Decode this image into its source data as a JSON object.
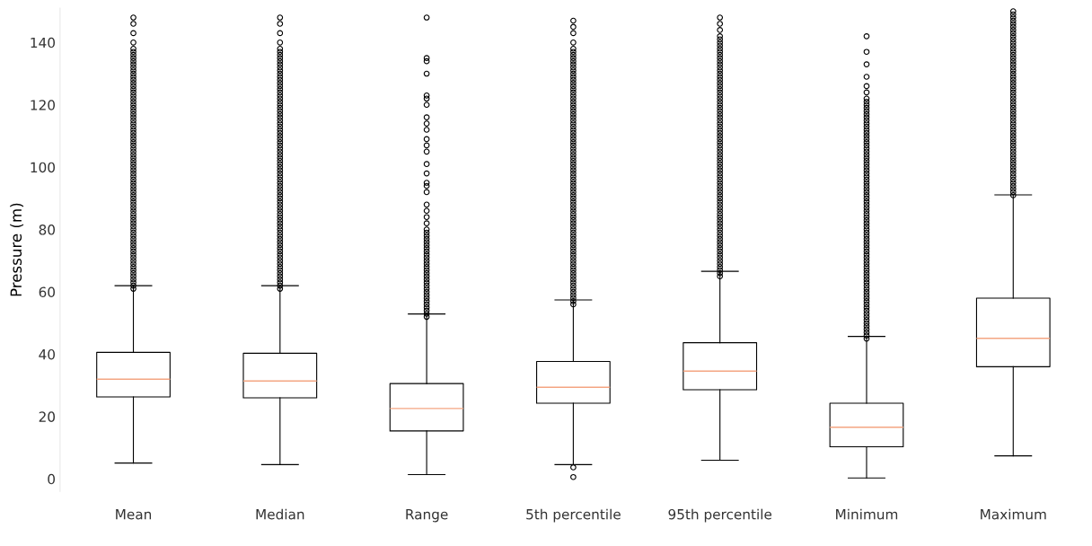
{
  "chart_data": {
    "type": "box",
    "ylabel": "Pressure (m)",
    "categories": [
      "Mean",
      "Median",
      "Range",
      "5th percentile",
      "95th percentile",
      "Minimum",
      "Maximum"
    ],
    "ylim": [
      -4,
      151
    ],
    "yticks": [
      0,
      20,
      40,
      60,
      80,
      100,
      120,
      140
    ],
    "grid": false,
    "color": "#f4a582",
    "series": [
      {
        "color": "#000000",
        "boxes": [
          {
            "low": 5.1,
            "q1": 26.3,
            "median": 32,
            "q3": 40.6,
            "high": 62,
            "outliers": [
              61,
              62,
              63,
              64,
              65,
              66,
              67,
              68,
              69,
              70,
              71,
              72,
              73,
              74,
              75,
              76,
              77,
              78,
              79,
              80,
              81,
              82,
              83,
              84,
              85,
              86,
              87,
              88,
              89,
              90,
              91,
              92,
              93,
              94,
              95,
              96,
              97,
              98,
              99,
              100,
              101,
              102,
              103,
              104,
              105,
              106,
              107,
              108,
              109,
              110,
              111,
              112,
              113,
              114,
              115,
              116,
              117,
              118,
              119,
              120,
              121,
              122,
              123,
              124,
              125,
              126,
              127,
              128,
              129,
              130,
              131,
              132,
              133,
              134,
              135,
              136,
              137,
              138,
              140,
              143,
              146,
              148
            ]
          },
          {
            "low": 4.6,
            "q1": 26,
            "median": 31.4,
            "q3": 40.3,
            "high": 62,
            "outliers": [
              61,
              62,
              63,
              64,
              65,
              66,
              67,
              68,
              69,
              70,
              71,
              72,
              73,
              74,
              75,
              76,
              77,
              78,
              79,
              80,
              81,
              82,
              83,
              84,
              85,
              86,
              87,
              88,
              89,
              90,
              91,
              92,
              93,
              94,
              95,
              96,
              97,
              98,
              99,
              100,
              101,
              102,
              103,
              104,
              105,
              106,
              107,
              108,
              109,
              110,
              111,
              112,
              113,
              114,
              115,
              116,
              117,
              118,
              119,
              120,
              121,
              122,
              123,
              124,
              125,
              126,
              127,
              128,
              129,
              130,
              131,
              132,
              133,
              134,
              135,
              136,
              137,
              138,
              140,
              143,
              146,
              148
            ]
          },
          {
            "low": 1.4,
            "q1": 15.4,
            "median": 22.6,
            "q3": 30.6,
            "high": 52.9,
            "outliers": [
              52,
              53,
              54,
              55,
              56,
              57,
              58,
              59,
              60,
              61,
              62,
              63,
              64,
              65,
              66,
              67,
              68,
              69,
              70,
              71,
              72,
              73,
              74,
              75,
              76,
              77,
              78,
              79,
              80,
              82,
              84,
              86,
              88,
              92,
              94,
              95,
              98,
              101,
              105,
              107,
              109,
              112,
              114,
              116,
              120,
              122,
              123,
              130,
              134,
              135,
              148
            ]
          },
          {
            "low": 4.6,
            "q1": 24.3,
            "median": 29.4,
            "q3": 37.7,
            "high": 57.4,
            "outliers": [
              0.6,
              3.7,
              56,
              57,
              58,
              59,
              60,
              61,
              62,
              63,
              64,
              65,
              66,
              67,
              68,
              69,
              70,
              71,
              72,
              73,
              74,
              75,
              76,
              77,
              78,
              79,
              80,
              81,
              82,
              83,
              84,
              85,
              86,
              87,
              88,
              89,
              90,
              91,
              92,
              93,
              94,
              95,
              96,
              97,
              98,
              99,
              100,
              101,
              102,
              103,
              104,
              105,
              106,
              107,
              108,
              109,
              110,
              111,
              112,
              113,
              114,
              115,
              116,
              117,
              118,
              119,
              120,
              121,
              122,
              123,
              124,
              125,
              126,
              127,
              128,
              129,
              130,
              131,
              132,
              133,
              134,
              135,
              136,
              137,
              138,
              140,
              143,
              145,
              147
            ]
          },
          {
            "low": 6,
            "q1": 28.6,
            "median": 34.6,
            "q3": 43.7,
            "high": 66.6,
            "outliers": [
              65,
              66,
              67,
              68,
              69,
              70,
              71,
              72,
              73,
              74,
              75,
              76,
              77,
              78,
              79,
              80,
              81,
              82,
              83,
              84,
              85,
              86,
              87,
              88,
              89,
              90,
              91,
              92,
              93,
              94,
              95,
              96,
              97,
              98,
              99,
              100,
              101,
              102,
              103,
              104,
              105,
              106,
              107,
              108,
              109,
              110,
              111,
              112,
              113,
              114,
              115,
              116,
              117,
              118,
              119,
              120,
              121,
              122,
              123,
              124,
              125,
              126,
              127,
              128,
              129,
              130,
              131,
              132,
              133,
              134,
              135,
              136,
              137,
              138,
              139,
              140,
              141,
              142,
              144,
              146,
              148
            ]
          },
          {
            "low": 0.3,
            "q1": 10.3,
            "median": 16.6,
            "q3": 24.3,
            "high": 45.7,
            "outliers": [
              45,
              46,
              47,
              48,
              49,
              50,
              51,
              52,
              53,
              54,
              55,
              56,
              57,
              58,
              59,
              60,
              61,
              62,
              63,
              64,
              65,
              66,
              67,
              68,
              69,
              70,
              71,
              72,
              73,
              74,
              75,
              76,
              77,
              78,
              79,
              80,
              81,
              82,
              83,
              84,
              85,
              86,
              87,
              88,
              89,
              90,
              91,
              92,
              93,
              94,
              95,
              96,
              97,
              98,
              99,
              100,
              101,
              102,
              103,
              104,
              105,
              106,
              107,
              108,
              109,
              110,
              111,
              112,
              113,
              114,
              115,
              116,
              117,
              118,
              119,
              120,
              121,
              122,
              124,
              126,
              129,
              133,
              137,
              142
            ]
          },
          {
            "low": 7.4,
            "q1": 36,
            "median": 45.1,
            "q3": 58,
            "high": 91.1,
            "outliers": [
              91,
              92,
              93,
              94,
              95,
              96,
              97,
              98,
              99,
              100,
              101,
              102,
              103,
              104,
              105,
              106,
              107,
              108,
              109,
              110,
              111,
              112,
              113,
              114,
              115,
              116,
              117,
              118,
              119,
              120,
              121,
              122,
              123,
              124,
              125,
              126,
              127,
              128,
              129,
              130,
              131,
              132,
              133,
              134,
              135,
              136,
              137,
              138,
              139,
              140,
              141,
              142,
              143,
              144,
              145,
              146,
              147,
              148,
              149,
              150
            ]
          }
        ]
      }
    ]
  }
}
